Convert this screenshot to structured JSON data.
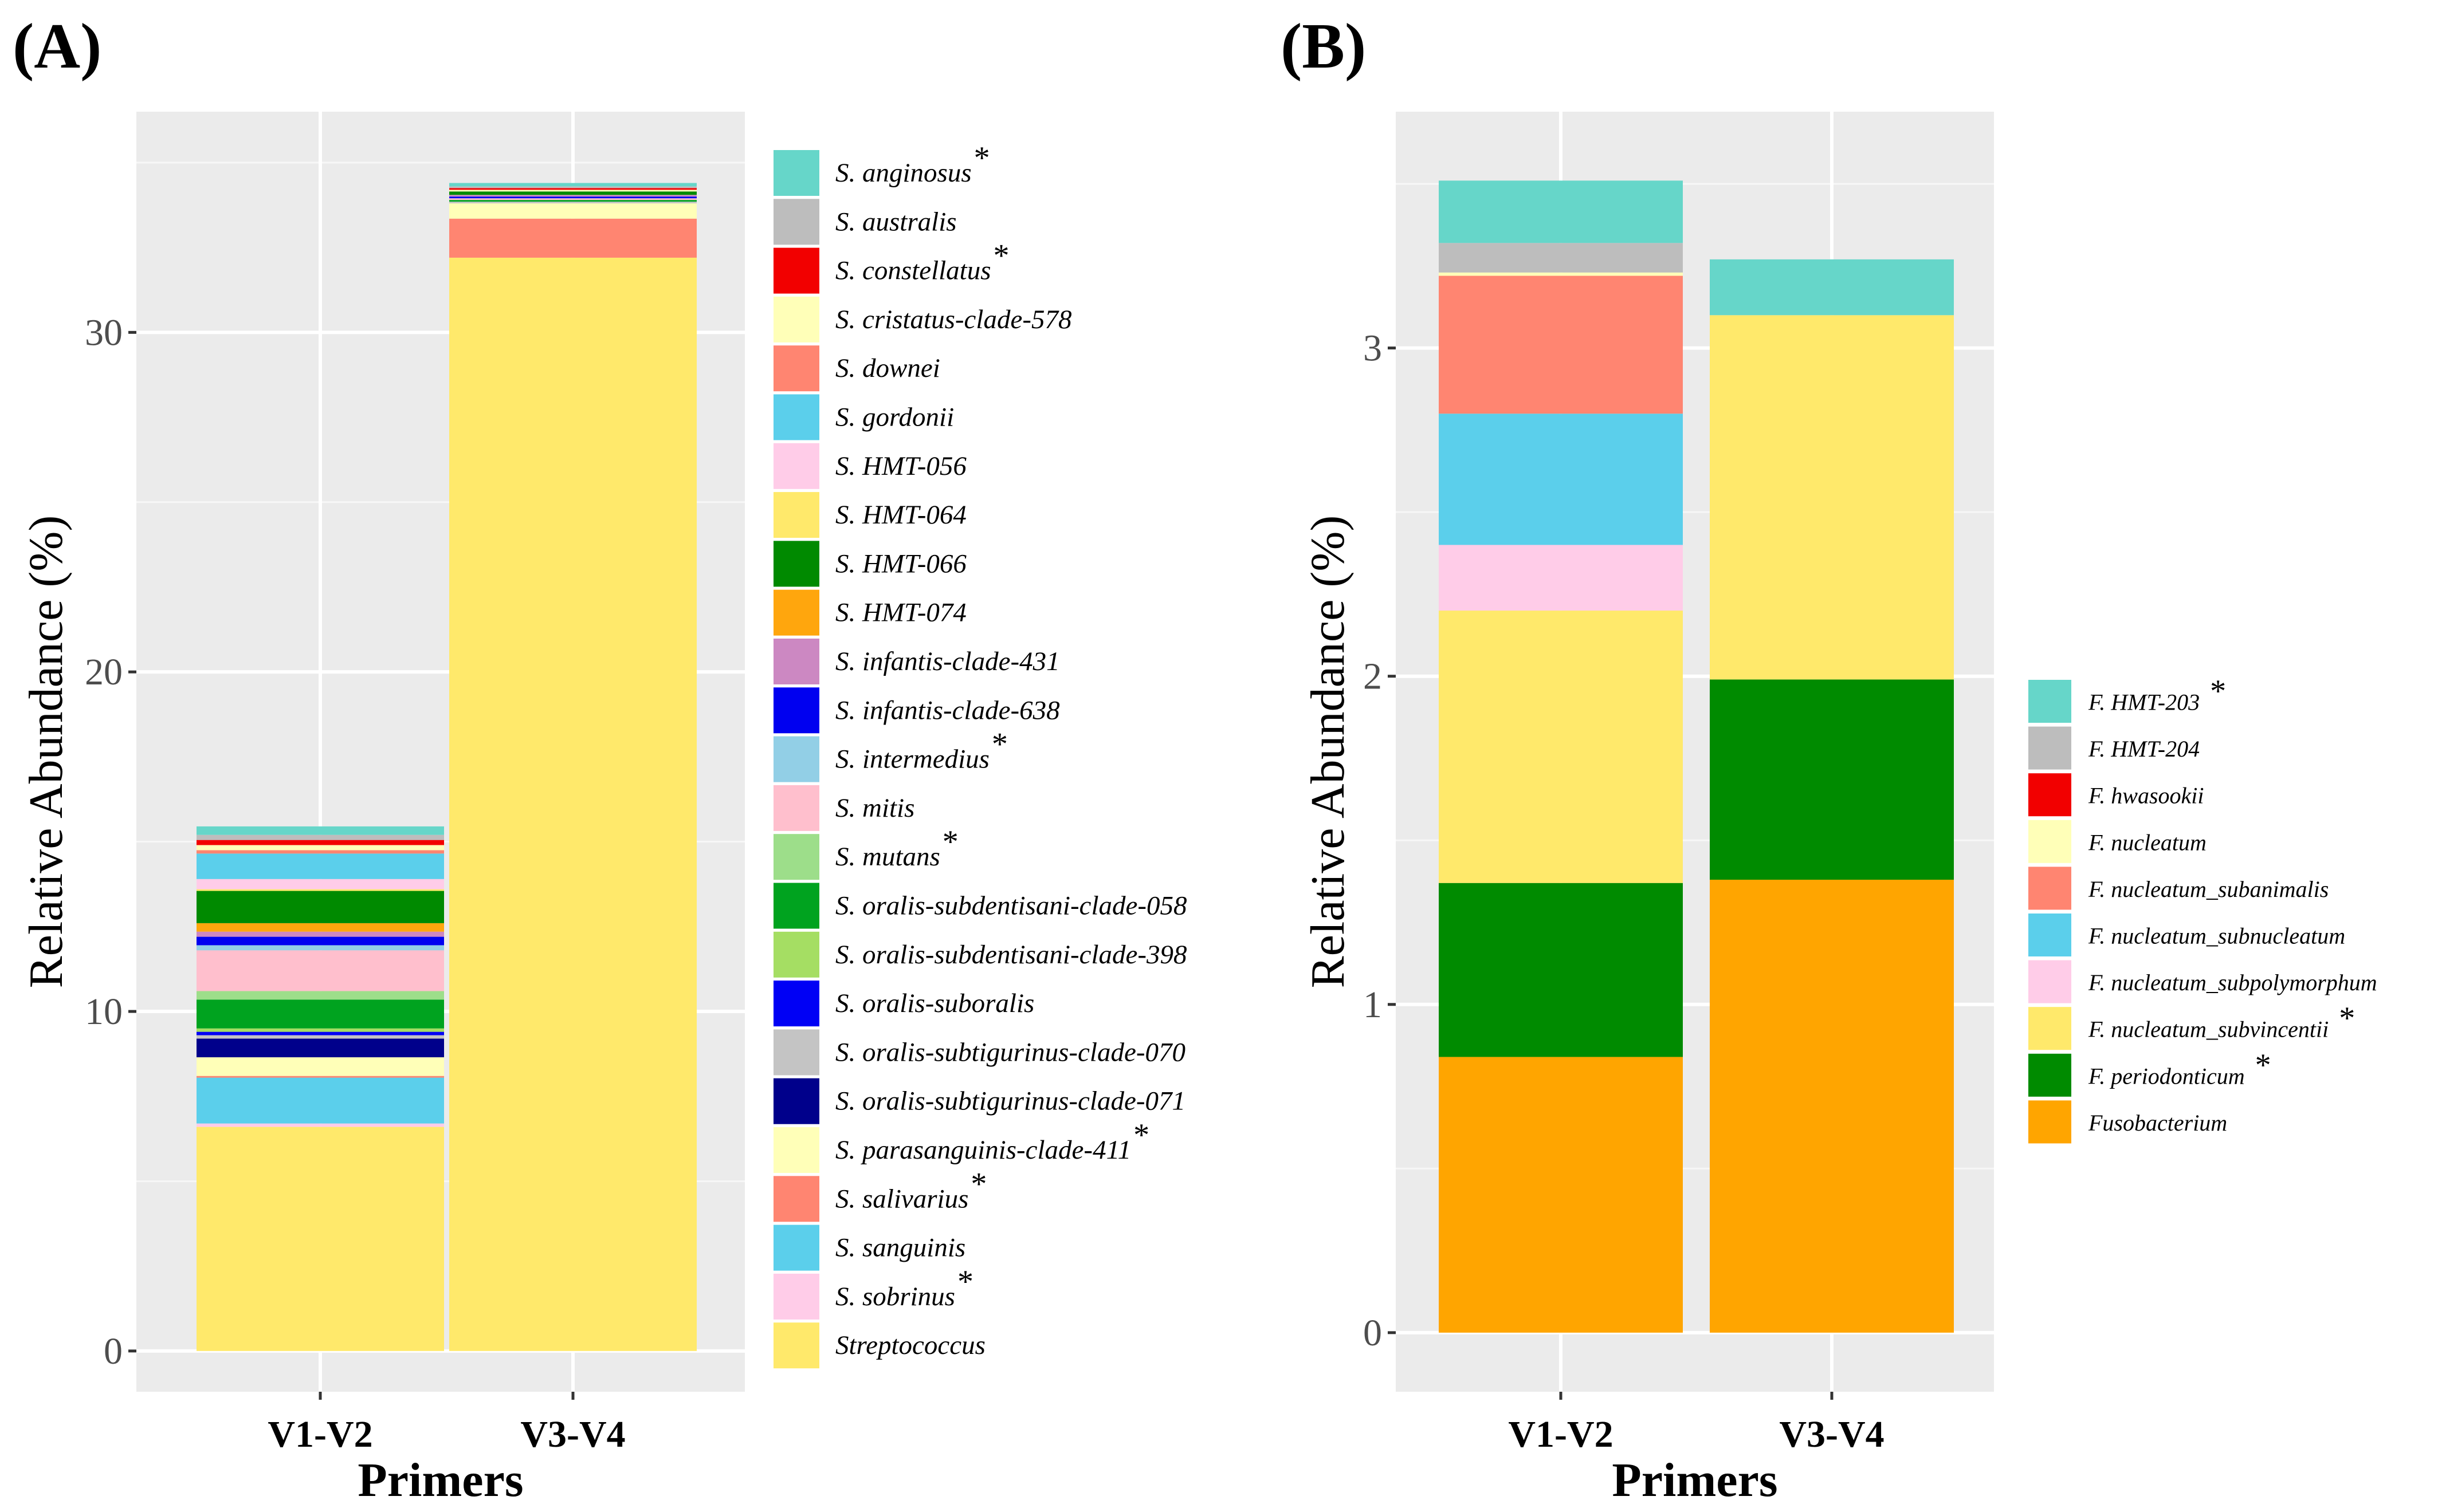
{
  "panels": [
    {
      "label": "(A)",
      "chart_data": {
        "type": "bar",
        "stacked": true,
        "categories": [
          "V1-V2",
          "V3-V4"
        ],
        "xlabel": "Primers",
        "ylabel": "Relative Abundance (%)",
        "ylim": [
          -1.2,
          36.5
        ],
        "yticks": [
          0,
          10,
          20,
          30
        ],
        "grid": true,
        "legend_position": "right",
        "series": [
          {
            "name": "Streptococcus",
            "star": false,
            "color": "#FFE96B",
            "values": [
              6.6,
              32.2
            ]
          },
          {
            "name": "S. sobrinus",
            "star": true,
            "color": "#FFCCE8",
            "values": [
              0.1,
              0.0
            ]
          },
          {
            "name": "S. sanguinis",
            "star": false,
            "color": "#5BCFEB",
            "values": [
              1.35,
              0.0
            ]
          },
          {
            "name": "S. salivarius",
            "star": true,
            "color": "#FF8571",
            "values": [
              0.05,
              1.15
            ]
          },
          {
            "name": "S. parasanguinis-clade-411",
            "star": true,
            "color": "#FFFFB8",
            "values": [
              0.55,
              0.45
            ]
          },
          {
            "name": "S. oralis-subtigurinus-clade-071",
            "star": false,
            "color": "#00008B",
            "values": [
              0.55,
              0.0
            ]
          },
          {
            "name": "S. oralis-subtigurinus-clade-070",
            "star": false,
            "color": "#C4C4C4",
            "values": [
              0.1,
              0.05
            ]
          },
          {
            "name": "S. oralis-suboralis",
            "star": false,
            "color": "#0000F5",
            "values": [
              0.1,
              0.0
            ]
          },
          {
            "name": "S. oralis-subdentisani-clade-398",
            "star": false,
            "color": "#A5DE63",
            "values": [
              0.1,
              0.0
            ]
          },
          {
            "name": "S. oralis-subdentisani-clade-058",
            "star": false,
            "color": "#00A31F",
            "values": [
              0.85,
              0.05
            ]
          },
          {
            "name": "S. mutans",
            "star": true,
            "color": "#9DDE8A",
            "values": [
              0.25,
              0.0
            ]
          },
          {
            "name": "S. mitis",
            "star": false,
            "color": "#FFBFCD",
            "values": [
              1.2,
              0.05
            ]
          },
          {
            "name": "S. intermedius",
            "star": true,
            "color": "#92CFE6",
            "values": [
              0.15,
              0.0
            ]
          },
          {
            "name": "S. infantis-clade-638",
            "star": false,
            "color": "#0000F0",
            "values": [
              0.25,
              0.05
            ]
          },
          {
            "name": "S. infantis-clade-431",
            "star": false,
            "color": "#CC88C2",
            "values": [
              0.15,
              0.05
            ]
          },
          {
            "name": "S. HMT-074",
            "star": false,
            "color": "#FFA60D",
            "values": [
              0.25,
              0.0
            ]
          },
          {
            "name": "S. HMT-066",
            "star": false,
            "color": "#008A00",
            "values": [
              0.95,
              0.1
            ]
          },
          {
            "name": "S. HMT-064",
            "star": false,
            "color": "#FFE96B",
            "values": [
              0.05,
              0.0
            ]
          },
          {
            "name": "S. HMT-056",
            "star": false,
            "color": "#FFCCE8",
            "values": [
              0.3,
              0.0
            ]
          },
          {
            "name": "S. gordonii",
            "star": false,
            "color": "#5BCFEB",
            "values": [
              0.75,
              0.0
            ]
          },
          {
            "name": "S. downei",
            "star": false,
            "color": "#FF8571",
            "values": [
              0.1,
              0.0
            ]
          },
          {
            "name": "S. cristatus-clade-578",
            "star": false,
            "color": "#FFFFB8",
            "values": [
              0.15,
              0.05
            ]
          },
          {
            "name": "S. constellatus",
            "star": true,
            "color": "#F20000",
            "values": [
              0.15,
              0.05
            ]
          },
          {
            "name": "S. australis",
            "star": false,
            "color": "#BDBDBD",
            "values": [
              0.15,
              0.05
            ]
          },
          {
            "name": "S. anginosus",
            "star": true,
            "color": "#66D6C9",
            "values": [
              0.25,
              0.1
            ]
          }
        ]
      }
    },
    {
      "label": "(B)",
      "chart_data": {
        "type": "bar",
        "stacked": true,
        "categories": [
          "V1-V2",
          "V3-V4"
        ],
        "xlabel": "Primers",
        "ylabel": "Relative Abundance (%)",
        "ylim": [
          -0.18,
          3.72
        ],
        "yticks": [
          0,
          1,
          2,
          3
        ],
        "grid": true,
        "legend_position": "right",
        "series": [
          {
            "name": "Fusobacterium",
            "star": false,
            "color": "#FFA500",
            "values": [
              0.84,
              1.38
            ]
          },
          {
            "name": "F. periodonticum",
            "star": true,
            "color": "#008B00",
            "values": [
              0.53,
              0.61
            ]
          },
          {
            "name": "F. nucleatum_subvincentii",
            "star": true,
            "color": "#FFE96B",
            "values": [
              0.83,
              1.11
            ]
          },
          {
            "name": "F. nucleatum_subpolymorphum",
            "star": false,
            "color": "#FFCCE8",
            "values": [
              0.2,
              0.0
            ]
          },
          {
            "name": "F. nucleatum_subnucleatum",
            "star": false,
            "color": "#5BCFEB",
            "values": [
              0.4,
              0.0
            ]
          },
          {
            "name": "F. nucleatum_subanimalis",
            "star": false,
            "color": "#FF8571",
            "values": [
              0.42,
              0.0
            ]
          },
          {
            "name": "F. nucleatum",
            "star": false,
            "color": "#FFFFB8",
            "values": [
              0.01,
              0.0
            ]
          },
          {
            "name": "F. hwasookii",
            "star": false,
            "color": "#F20000",
            "values": [
              0.0,
              0.0
            ]
          },
          {
            "name": "F. HMT-204",
            "star": false,
            "color": "#BDBDBD",
            "values": [
              0.09,
              0.0
            ]
          },
          {
            "name": "F. HMT-203",
            "star": true,
            "color": "#66D6C9",
            "values": [
              0.19,
              0.17
            ]
          }
        ]
      }
    }
  ],
  "star_symbol": "*"
}
